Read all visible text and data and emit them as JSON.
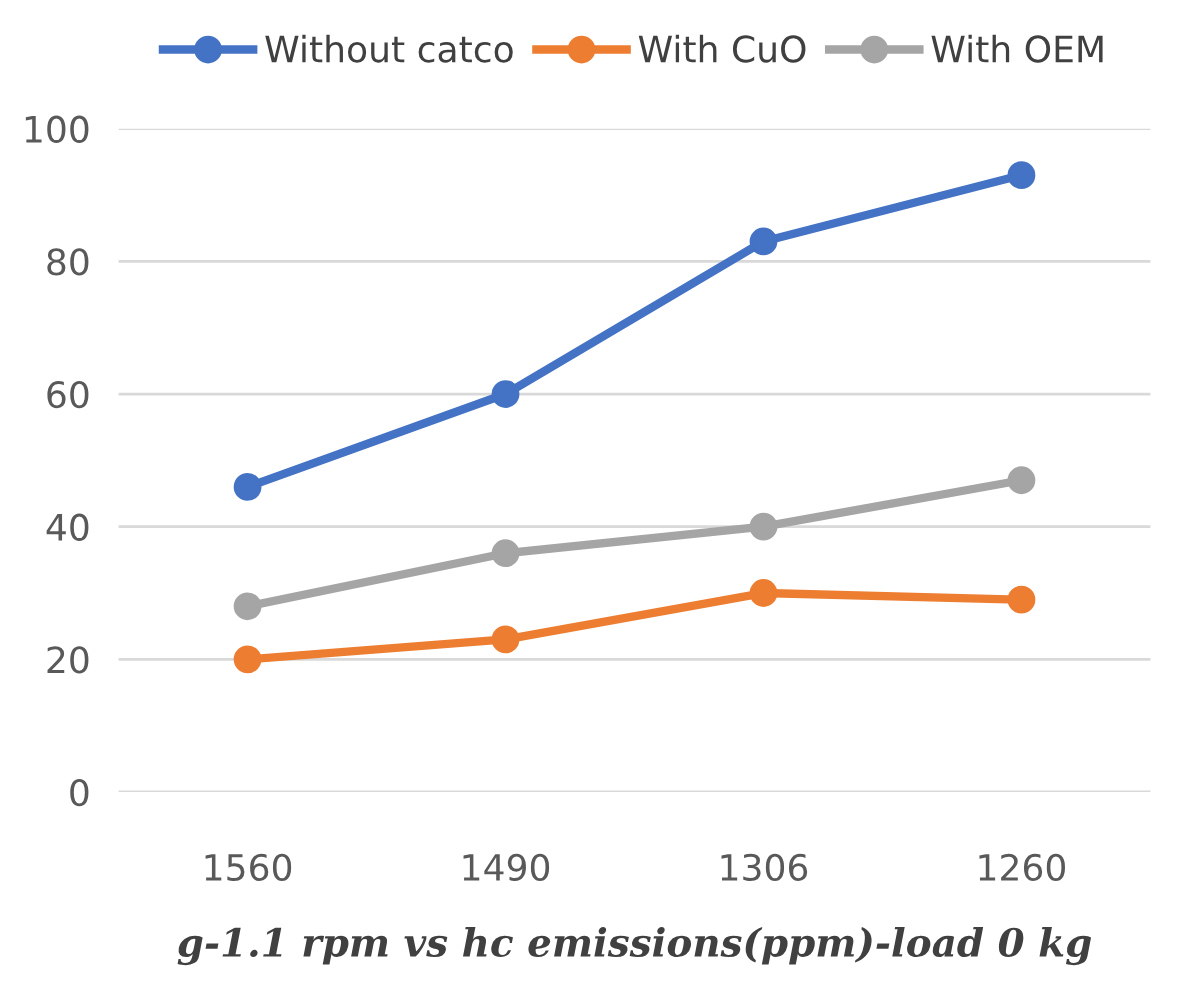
{
  "chart_data": {
    "type": "line",
    "xlabel": "g-1.1 rpm vs hc emissions(ppm)-load 0 kg",
    "categories": [
      "1560",
      "1490",
      "1306",
      "1260"
    ],
    "series": [
      {
        "name": "Without catco",
        "color": "#4472c4",
        "values": [
          46,
          60,
          83,
          93
        ]
      },
      {
        "name": "With CuO",
        "color": "#ed7d31",
        "values": [
          20,
          23,
          30,
          29
        ]
      },
      {
        "name": "With OEM",
        "color": "#a5a5a5",
        "values": [
          28,
          36,
          40,
          47
        ]
      }
    ],
    "ylim": [
      0,
      100
    ],
    "yticks": [
      0,
      20,
      40,
      60,
      80,
      100
    ],
    "grid": "y",
    "legend": "top",
    "marker": "circle",
    "line_style": "solid"
  }
}
